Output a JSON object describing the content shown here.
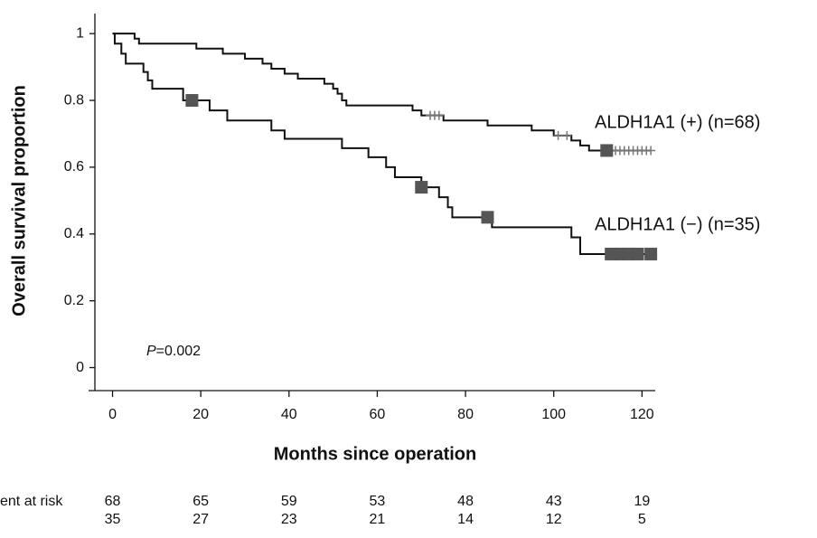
{
  "chart_data": {
    "type": "step",
    "xlabel": "Months since operation",
    "ylabel": "Overall survival proportion",
    "annotation": "P=0.002",
    "xlim": [
      -4,
      123
    ],
    "xticks": [
      0,
      20,
      40,
      60,
      80,
      100,
      120
    ],
    "ylim": [
      -0.05,
      1.06
    ],
    "yticks": [
      0,
      0.2,
      0.4,
      0.6,
      0.8,
      1
    ],
    "series": [
      {
        "name": "ALDH1A1 (+) (n=68)",
        "color": "#111111",
        "x": [
          0,
          5,
          6,
          19,
          25,
          30,
          34,
          36,
          39,
          42,
          48,
          50,
          51,
          52,
          53,
          68,
          70,
          75,
          85,
          95,
          100,
          104,
          106,
          108
        ],
        "values": [
          1.0,
          0.985,
          0.97,
          0.955,
          0.94,
          0.925,
          0.91,
          0.895,
          0.88,
          0.865,
          0.85,
          0.835,
          0.82,
          0.8,
          0.785,
          0.77,
          0.755,
          0.74,
          0.725,
          0.71,
          0.695,
          0.68,
          0.665,
          0.65
        ],
        "censors": [
          {
            "marker": "plus",
            "color": "#777777",
            "x": [
              72,
              73,
              74,
              101,
              103,
              113,
              114,
              115,
              116,
              117,
              118,
              119,
              120,
              121,
              122
            ],
            "values": [
              0.755,
              0.755,
              0.755,
              0.695,
              0.695,
              0.65,
              0.65,
              0.65,
              0.65,
              0.65,
              0.65,
              0.65,
              0.65,
              0.65,
              0.65
            ]
          },
          {
            "marker": "square",
            "color": "#555555",
            "x": [
              112
            ],
            "values": [
              0.65
            ]
          }
        ]
      },
      {
        "name": "ALDH1A1 (−) (n=35)",
        "color": "#111111",
        "x": [
          0,
          0.5,
          2,
          3,
          7,
          8,
          9,
          16,
          22,
          26,
          36,
          39,
          52,
          58,
          62,
          64,
          70,
          74,
          76,
          77,
          86,
          104,
          106
        ],
        "values": [
          1.0,
          0.97,
          0.94,
          0.91,
          0.885,
          0.86,
          0.835,
          0.8,
          0.77,
          0.74,
          0.71,
          0.685,
          0.657,
          0.63,
          0.6,
          0.57,
          0.54,
          0.51,
          0.48,
          0.45,
          0.42,
          0.39,
          0.34
        ],
        "censors": [
          {
            "marker": "square",
            "color": "#555555",
            "x": [
              18,
              70,
              85,
              113,
              115,
              117,
              119,
              122
            ],
            "values": [
              0.8,
              0.54,
              0.45,
              0.34,
              0.34,
              0.34,
              0.34,
              0.34
            ]
          }
        ]
      }
    ],
    "risk_table": {
      "label": "ent at risk",
      "rows": [
        [
          68,
          65,
          59,
          53,
          48,
          43,
          19
        ],
        [
          35,
          27,
          23,
          21,
          14,
          12,
          5
        ]
      ]
    }
  }
}
